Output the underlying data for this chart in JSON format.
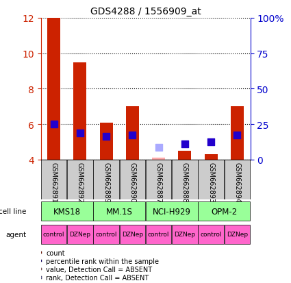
{
  "title": "GDS4288 / 1556909_at",
  "samples": [
    "GSM662891",
    "GSM662892",
    "GSM662889",
    "GSM662890",
    "GSM662887",
    "GSM662888",
    "GSM662893",
    "GSM662894"
  ],
  "count_values": [
    12.0,
    9.5,
    6.1,
    7.0,
    4.1,
    4.5,
    4.3,
    7.0
  ],
  "count_absent": [
    false,
    false,
    false,
    false,
    true,
    false,
    false,
    false
  ],
  "rank_values": [
    6.0,
    5.5,
    5.3,
    5.4,
    4.7,
    4.9,
    5.0,
    5.4
  ],
  "rank_absent": [
    false,
    false,
    false,
    false,
    true,
    false,
    false,
    false
  ],
  "cell_lines": [
    {
      "label": "KMS18",
      "span": [
        0,
        2
      ]
    },
    {
      "label": "MM.1S",
      "span": [
        2,
        4
      ]
    },
    {
      "label": "NCI-H929",
      "span": [
        4,
        6
      ]
    },
    {
      "label": "OPM-2",
      "span": [
        6,
        8
      ]
    }
  ],
  "agents": [
    "control",
    "DZNep",
    "control",
    "DZNep",
    "control",
    "DZNep",
    "control",
    "DZNep"
  ],
  "agent_pink_color": "#ff66cc",
  "cell_line_color": "#99ff99",
  "sample_box_color": "#cccccc",
  "bar_color": "#cc2200",
  "bar_absent_color": "#ffaaaa",
  "rank_color": "#2200cc",
  "rank_absent_color": "#aaaaff",
  "ylim": [
    4,
    12
  ],
  "yticks": [
    4,
    6,
    8,
    10,
    12
  ],
  "y2lim": [
    0,
    100
  ],
  "y2ticks": [
    0,
    25,
    50,
    75,
    100
  ],
  "y2labels": [
    "0",
    "25",
    "50",
    "75",
    "100%"
  ],
  "bar_width": 0.5,
  "rank_marker_size": 60,
  "grid_color": "#000000",
  "bg_color": "#ffffff",
  "left_color": "#cc2200",
  "right_color": "#0000cc"
}
